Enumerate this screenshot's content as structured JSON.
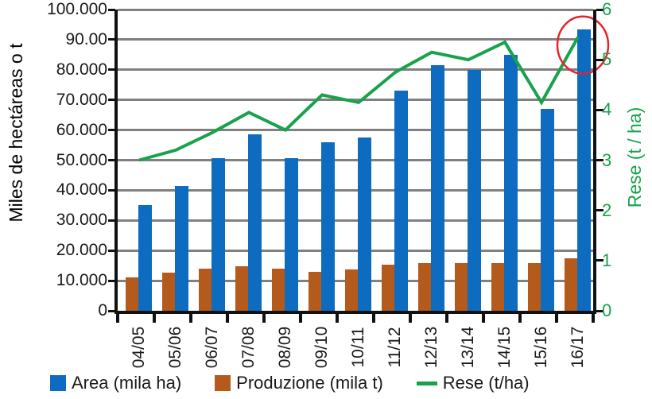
{
  "chart_data": {
    "type": "bar+line combo",
    "categories": [
      "04/05",
      "05/06",
      "06/07",
      "07/08",
      "08/09",
      "09/10",
      "10/11",
      "11/12",
      "12/13",
      "13/14",
      "14/15",
      "15/16",
      "16/17"
    ],
    "series": [
      {
        "name": "Area (mila ha)",
        "type": "bar",
        "axis": "left",
        "color": "#0d6cbf",
        "values": [
          35000,
          41500,
          50700,
          58500,
          50700,
          56000,
          57400,
          73000,
          81500,
          80000,
          85000,
          67000,
          93300
        ]
      },
      {
        "name": "Produzione (mila t)",
        "type": "bar",
        "axis": "left",
        "color": "#b45a1d",
        "values": [
          11200,
          12600,
          14000,
          14700,
          14000,
          12900,
          13700,
          15300,
          15700,
          15700,
          15900,
          15900,
          17300
        ]
      },
      {
        "name": "Rese (t/ha)",
        "type": "line",
        "axis": "right",
        "color": "#18a24b",
        "values": [
          3.0,
          3.2,
          3.55,
          3.95,
          3.6,
          4.3,
          4.15,
          4.75,
          5.15,
          5.0,
          5.35,
          4.15,
          5.45
        ]
      }
    ],
    "left_axis": {
      "title": "Miles de hectáreas o t",
      "min": 0,
      "max": 100000,
      "ticks": [
        "100.000",
        "90.00",
        "80.000",
        "70.000",
        "60.000",
        "50.000",
        "40.000",
        "30.000",
        "20.000",
        "10.000",
        "0"
      ]
    },
    "right_axis": {
      "title": "Rese (t / ha)",
      "min": 0,
      "max": 6,
      "ticks": [
        "6",
        "5",
        "4",
        "3",
        "2",
        "1",
        "0"
      ]
    },
    "grid": true,
    "legend_position": "bottom",
    "bar_draw_order": [
      "Produzione (mila t)",
      "Area (mila ha)"
    ],
    "annotation": {
      "shape": "ellipse",
      "color": "#e62329",
      "note": "red circle around final 16/17 Rese point"
    }
  },
  "legend": {
    "items": [
      {
        "label": "Area (mila ha)",
        "color": "#0d6cbf",
        "swatch": "square"
      },
      {
        "label": "Produzione (mila t)",
        "color": "#b45a1d",
        "swatch": "square"
      },
      {
        "label": "Rese (t/ha)",
        "color": "#18a24b",
        "swatch": "line"
      }
    ]
  }
}
